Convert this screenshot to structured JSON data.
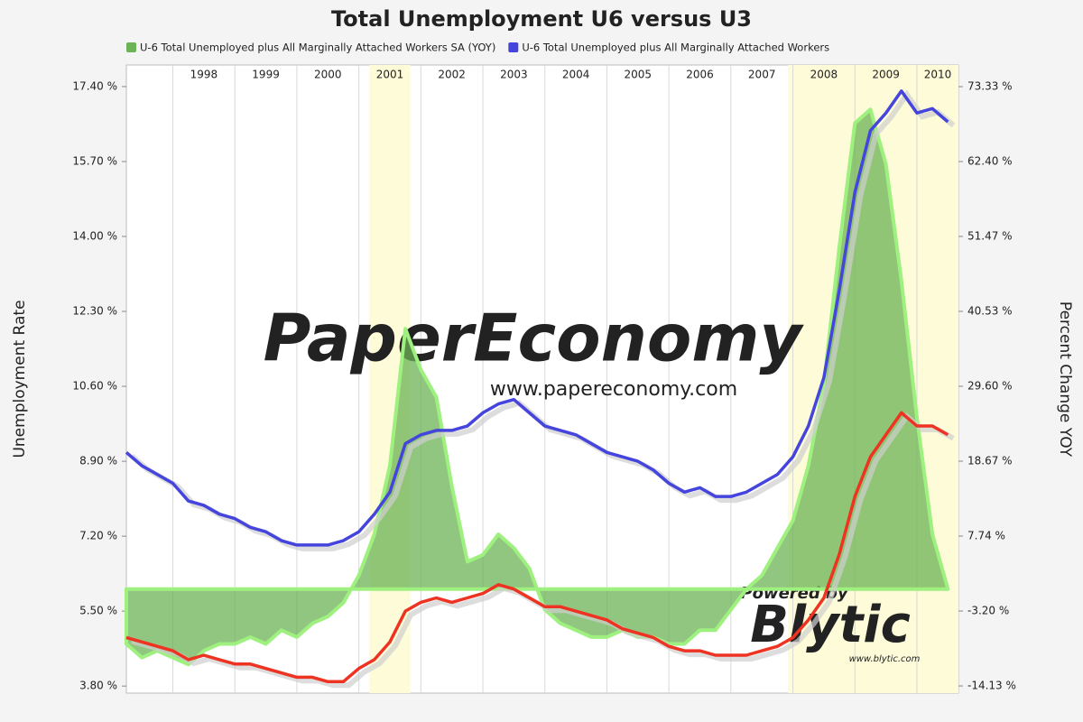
{
  "chart_data": {
    "type": "line",
    "title": "Total Unemployment U6 versus U3",
    "ylabel": "Unemployment Rate",
    "y2label": "Percent Change YOY",
    "annotations": [
      "PaperEconomy",
      "www.papereconomy.com",
      "Powered by",
      "Blytic",
      "www.blytic.com"
    ],
    "xlim": [
      1997.25,
      2010.67
    ],
    "xticks": [
      1998,
      1999,
      2000,
      2001,
      2002,
      2003,
      2004,
      2005,
      2006,
      2007,
      2008,
      2009,
      2010
    ],
    "grid": true,
    "shaded_periods": [
      [
        2001.17,
        2001.83
      ],
      [
        2007.92,
        2010.67
      ]
    ],
    "ylim": [
      3.64,
      17.89
    ],
    "yticks": [
      {
        "value": 3.8,
        "label": "3.80 %"
      },
      {
        "value": 5.5,
        "label": "5.50 %"
      },
      {
        "value": 7.2,
        "label": "7.20 %"
      },
      {
        "value": 8.9,
        "label": "8.90 %"
      },
      {
        "value": 10.6,
        "label": "10.60 %"
      },
      {
        "value": 12.3,
        "label": "12.30 %"
      },
      {
        "value": 14.0,
        "label": "14.00 %"
      },
      {
        "value": 15.7,
        "label": "15.70 %"
      },
      {
        "value": 17.4,
        "label": "17.40 %"
      }
    ],
    "y2lim": [
      -15.18,
      76.49
    ],
    "y2ticks": [
      {
        "value": -14.13,
        "label": "-14.13 %"
      },
      {
        "value": -3.2,
        "label": "-3.20 %"
      },
      {
        "value": 7.74,
        "label": "7.74 %"
      },
      {
        "value": 18.67,
        "label": "18.67 %"
      },
      {
        "value": 29.6,
        "label": "29.60 %"
      },
      {
        "value": 40.53,
        "label": "40.53 %"
      },
      {
        "value": 51.47,
        "label": "51.47 %"
      },
      {
        "value": 62.4,
        "label": "62.40 %"
      },
      {
        "value": 73.33,
        "label": "73.33 %"
      }
    ],
    "x": [
      1997.25,
      1997.5,
      1997.75,
      1998,
      1998.25,
      1998.5,
      1998.75,
      1999,
      1999.25,
      1999.5,
      1999.75,
      2000,
      2000.25,
      2000.5,
      2000.75,
      2001,
      2001.25,
      2001.5,
      2001.75,
      2002,
      2002.25,
      2002.5,
      2002.75,
      2003,
      2003.25,
      2003.5,
      2003.75,
      2004,
      2004.25,
      2004.5,
      2004.75,
      2005,
      2005.25,
      2005.5,
      2005.75,
      2006,
      2006.25,
      2006.5,
      2006.75,
      2007,
      2007.25,
      2007.5,
      2007.75,
      2008,
      2008.25,
      2008.5,
      2008.75,
      2009,
      2009.25,
      2009.5,
      2009.75,
      2010,
      2010.25,
      2010.5
    ],
    "series": [
      {
        "name": "U-6 Total Unemployed plus All Marginally Attached Workers SA (YOY)",
        "color": "#6cb355",
        "kind": "area",
        "axis": "y2",
        "values": [
          -8,
          -10,
          -9,
          -10,
          -11,
          -9,
          -8,
          -8,
          -7,
          -8,
          -6,
          -7,
          -5,
          -4,
          -2,
          2,
          8,
          18,
          38,
          32,
          28,
          15,
          4,
          5,
          8,
          6,
          3,
          -3,
          -5,
          -6,
          -7,
          -7,
          -6,
          -7,
          -7,
          -8,
          -8,
          -6,
          -6,
          -3,
          0,
          2,
          6,
          10,
          18,
          30,
          50,
          68,
          70,
          62,
          45,
          25,
          8,
          0
        ]
      },
      {
        "name": "U-6 Total Unemployed plus All Marginally Attached Workers",
        "color": "#4545dd",
        "kind": "line",
        "values": [
          9.1,
          8.8,
          8.6,
          8.4,
          8.0,
          7.9,
          7.7,
          7.6,
          7.4,
          7.3,
          7.1,
          7.0,
          7.0,
          7.0,
          7.1,
          7.3,
          7.7,
          8.2,
          9.3,
          9.5,
          9.6,
          9.6,
          9.7,
          10.0,
          10.2,
          10.3,
          10.0,
          9.7,
          9.6,
          9.5,
          9.3,
          9.1,
          9.0,
          8.9,
          8.7,
          8.4,
          8.2,
          8.3,
          8.1,
          8.1,
          8.2,
          8.4,
          8.6,
          9.0,
          9.7,
          10.8,
          12.8,
          15.0,
          16.4,
          16.8,
          17.3,
          16.8,
          16.9,
          16.6
        ]
      },
      {
        "color": "#ee3322",
        "kind": "line",
        "values": [
          4.9,
          4.8,
          4.7,
          4.6,
          4.4,
          4.5,
          4.4,
          4.3,
          4.3,
          4.2,
          4.1,
          4.0,
          4.0,
          3.9,
          3.9,
          4.2,
          4.4,
          4.8,
          5.5,
          5.7,
          5.8,
          5.7,
          5.8,
          5.9,
          6.1,
          6.0,
          5.8,
          5.6,
          5.6,
          5.5,
          5.4,
          5.3,
          5.1,
          5.0,
          4.9,
          4.7,
          4.6,
          4.6,
          4.5,
          4.5,
          4.5,
          4.6,
          4.7,
          4.9,
          5.3,
          5.8,
          6.8,
          8.1,
          9.0,
          9.5,
          10.0,
          9.7,
          9.7,
          9.5
        ]
      }
    ]
  }
}
